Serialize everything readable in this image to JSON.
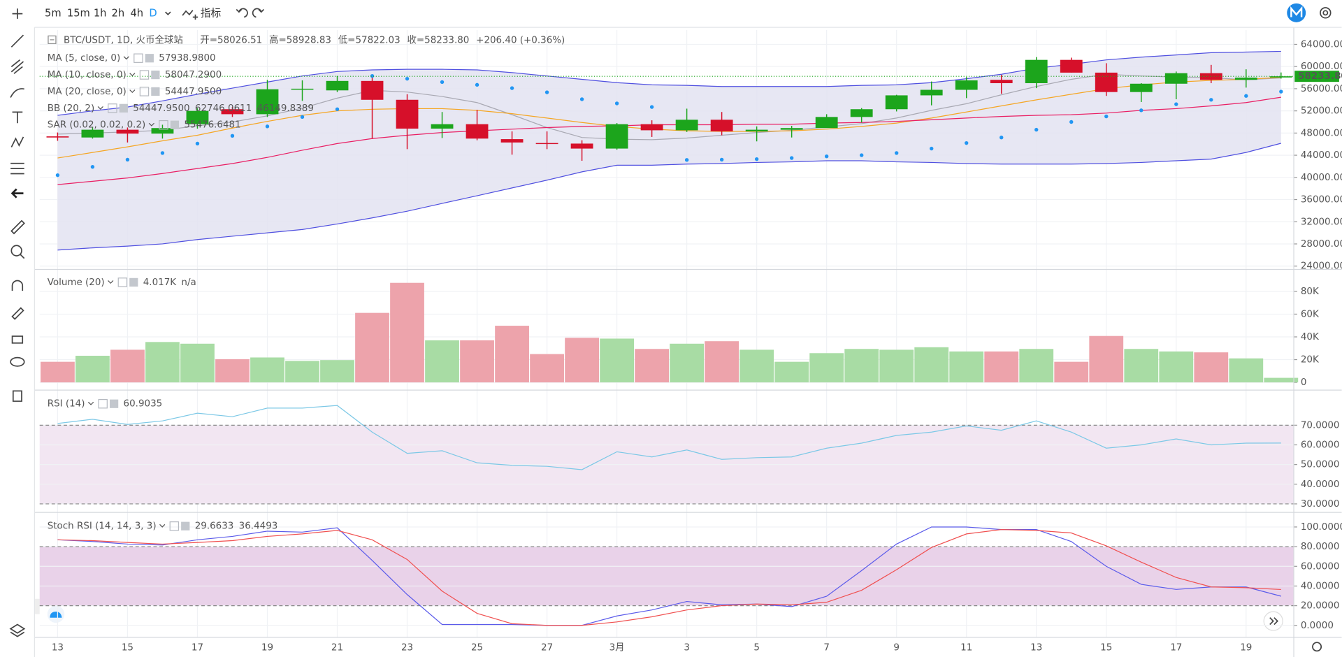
{
  "toolbar": {
    "intervals": [
      "5m",
      "15m",
      "1h",
      "2h",
      "4h",
      "D"
    ],
    "indicators_label": "指标"
  },
  "chart_data": [
    {
      "type": "candlestick",
      "title": "BTC/USDT, 1D, 火币全球站",
      "ohlc_labels": [
        "开=58026.51",
        "高=58928.83",
        "低=57822.03",
        "收=58233.80"
      ],
      "change_label": "+206.40 (+0.36%)",
      "price_label": "58233.80",
      "categories": [
        "13",
        null,
        "15",
        null,
        "17",
        null,
        "19",
        null,
        "21",
        null,
        "23",
        null,
        "25",
        null,
        "27",
        null,
        "3月",
        null,
        "3",
        null,
        "5",
        null,
        "7",
        null,
        "9",
        null,
        "11",
        null,
        "13",
        null,
        "15",
        null,
        "17",
        null,
        "19",
        null
      ],
      "open": [
        47400,
        47200,
        48600,
        47900,
        49600,
        52300,
        51400,
        55900,
        55700,
        57400,
        54000,
        48800,
        49600,
        46900,
        46200,
        46100,
        45200,
        49600,
        48500,
        50400,
        48300,
        48600,
        48900,
        50900,
        52300,
        54800,
        55800,
        57600,
        57000,
        61200,
        58900,
        55400,
        56900,
        58800,
        57600,
        58026.51
      ],
      "high": [
        48100,
        49000,
        49000,
        49500,
        52500,
        52700,
        57600,
        57500,
        58300,
        58400,
        55000,
        51800,
        52200,
        48300,
        48300,
        46700,
        49800,
        50300,
        52400,
        51800,
        49200,
        49300,
        51400,
        52500,
        54900,
        57300,
        58100,
        58500,
        61700,
        61600,
        60600,
        57000,
        59100,
        60300,
        59500,
        58928.83
      ],
      "low": [
        46600,
        47000,
        46300,
        47000,
        48800,
        50900,
        50900,
        53800,
        55400,
        47000,
        45100,
        47100,
        46700,
        44100,
        45100,
        43000,
        45000,
        47300,
        48200,
        47600,
        46500,
        47200,
        49300,
        49900,
        51900,
        53000,
        54300,
        55100,
        56100,
        58900,
        54700,
        53600,
        54100,
        57000,
        56200,
        57822.03
      ],
      "close": [
        47200,
        48600,
        47900,
        48900,
        52000,
        51400,
        55900,
        56000,
        57400,
        54000,
        48800,
        49600,
        47000,
        46300,
        46100,
        45200,
        49600,
        48500,
        50400,
        48300,
        48600,
        48900,
        50900,
        52300,
        54800,
        55800,
        57500,
        57000,
        61200,
        58900,
        55400,
        56900,
        58800,
        57600,
        58000,
        58233.8
      ],
      "up_color": "#1ca51c",
      "down_color": "#d6102a",
      "overlays": [
        {
          "name": "MA (5, close, 0)",
          "color": "#a9a9b3",
          "legend_values": [
            "57938.9800"
          ],
          "values": [
            47800,
            48000,
            48200,
            48500,
            49300,
            50000,
            51100,
            52500,
            54300,
            55700,
            55400,
            54600,
            53500,
            51300,
            49000,
            47200,
            46900,
            46800,
            47100,
            47600,
            48100,
            48500,
            49100,
            49700,
            50700,
            52100,
            53300,
            54900,
            56400,
            57700,
            58600,
            58300,
            58100,
            58000,
            57600,
            57938.98
          ]
        },
        {
          "name": "MA (10, close, 0)",
          "color": "#f5a623",
          "legend_values": [
            "58047.2900"
          ],
          "values": [
            43500,
            44500,
            45500,
            46600,
            47600,
            48900,
            50100,
            51200,
            52000,
            52300,
            52400,
            52400,
            52100,
            51500,
            50700,
            49900,
            49200,
            48700,
            48400,
            48300,
            48300,
            48400,
            48700,
            49200,
            49800,
            50700,
            51800,
            52900,
            54000,
            55000,
            56000,
            56700,
            57200,
            57500,
            57700,
            58047.29
          ]
        },
        {
          "name": "MA (20, close, 0)",
          "color": "#e91e63",
          "legend_values": [
            "54447.9500"
          ],
          "values": [
            38700,
            39300,
            39900,
            40700,
            41600,
            42500,
            43600,
            44900,
            46100,
            47000,
            47600,
            48100,
            48400,
            48700,
            49000,
            49200,
            49300,
            49500,
            49500,
            49500,
            49600,
            49600,
            49800,
            49900,
            50100,
            50400,
            50700,
            51000,
            51200,
            51300,
            51600,
            52100,
            52400,
            52900,
            53500,
            54447.95
          ]
        },
        {
          "name": "BB (20, 2)",
          "color": "#5050e0",
          "fill": "#e3e3f1",
          "legend_values": [
            "54447.9500",
            "62746.0611",
            "46149.8389"
          ],
          "legend_colors": [
            "#e0203a",
            "#2b2bd9",
            "#2b2bd9"
          ],
          "upper": [
            51200,
            52000,
            52700,
            53800,
            55000,
            56100,
            57200,
            58300,
            59100,
            59400,
            59500,
            59500,
            59400,
            58900,
            58300,
            57700,
            57100,
            56700,
            56600,
            56400,
            56400,
            56400,
            56400,
            56600,
            56700,
            57100,
            57800,
            58600,
            59700,
            60400,
            61200,
            61700,
            62100,
            62500,
            62600,
            62746.0611
          ],
          "lower": [
            26900,
            27300,
            27600,
            28000,
            28800,
            29400,
            30000,
            30600,
            31600,
            32700,
            33900,
            35300,
            36700,
            38100,
            39500,
            41000,
            42200,
            42200,
            42400,
            42500,
            42700,
            42800,
            43000,
            43000,
            42800,
            42700,
            42500,
            42400,
            42400,
            42400,
            42500,
            42700,
            43000,
            43300,
            44500,
            46149.8389
          ]
        },
        {
          "name": "SAR (0.02, 0.02, 0.2)",
          "color": "#2196f3",
          "style": "dots",
          "legend_values": [
            "55476.6481"
          ],
          "values": [
            40400,
            41900,
            43200,
            44400,
            46100,
            47500,
            49200,
            50900,
            52300,
            58300,
            57800,
            57200,
            56700,
            56100,
            55350,
            54100,
            53350,
            52700,
            43150,
            43200,
            43300,
            43500,
            43800,
            44000,
            44400,
            45200,
            46200,
            47200,
            48600,
            50000,
            51000,
            52100,
            53200,
            54000,
            54700,
            55476.6481
          ]
        }
      ],
      "ylim": [
        23700,
        66600
      ],
      "yticks": [
        {
          "value": 24000,
          "label": "24000.00"
        },
        {
          "value": 28000,
          "label": "28000.00"
        },
        {
          "value": 32000,
          "label": "32000.00"
        },
        {
          "value": 36000,
          "label": "36000.00"
        },
        {
          "value": 40000,
          "label": "40000.00"
        },
        {
          "value": 44000,
          "label": "44000.00"
        },
        {
          "value": 48000,
          "label": "48000.00"
        },
        {
          "value": 52000,
          "label": "52000.00"
        },
        {
          "value": 56000,
          "label": "56000.00"
        },
        {
          "value": 60000,
          "label": "60000.00"
        },
        {
          "value": 64000,
          "label": "64000.00"
        }
      ],
      "grid": true
    },
    {
      "type": "bar",
      "title": "Volume (20)",
      "legend_values": [
        "4.017K",
        "n/a"
      ],
      "legend_colors": [
        "#22a33a",
        "#555555"
      ],
      "values": [
        18100,
        23400,
        28700,
        35500,
        34000,
        20400,
        21900,
        18900,
        19600,
        61100,
        87500,
        37000,
        37000,
        49800,
        24900,
        39200,
        38500,
        29400,
        34000,
        36200,
        28700,
        18100,
        25700,
        29400,
        28700,
        30900,
        27200,
        27200,
        29400,
        18100,
        40800,
        29400,
        27200,
        26400,
        21100,
        4017
      ],
      "up_color": "#a8dca4",
      "down_color": "#eda3ab",
      "ylim": [
        0,
        97000
      ],
      "yticks": [
        0,
        {
          "value": 20000,
          "label": "20K"
        },
        {
          "value": 40000,
          "label": "40K"
        },
        {
          "value": 60000,
          "label": "60K"
        },
        {
          "value": 80000,
          "label": "80K"
        }
      ],
      "grid": true
    },
    {
      "type": "line",
      "title": "RSI (14)",
      "legend_values": [
        "60.9035"
      ],
      "legend_colors": [
        "#2bb7d6"
      ],
      "series": [
        {
          "color": "#7cc8e6",
          "values": [
            70.9,
            73,
            70.4,
            72.2,
            76.1,
            74.3,
            78.7,
            78.7,
            80,
            66.5,
            55.7,
            57,
            50.9,
            49.6,
            49.1,
            47.4,
            56.5,
            53.9,
            57.4,
            52.6,
            53.5,
            53.9,
            58.3,
            60.9,
            64.8,
            66.5,
            69.6,
            67.4,
            72.2,
            66.5,
            58.3,
            60,
            63,
            60,
            60.9,
            60.9035
          ]
        }
      ],
      "bands": [
        30,
        70
      ],
      "band_color": "#f2e6f2",
      "ylim": [
        27.4,
        86.1
      ],
      "yticks": [
        {
          "value": 30,
          "label": "30.0000"
        },
        {
          "value": 40,
          "label": "40.0000"
        },
        {
          "value": 50,
          "label": "50.0000"
        },
        {
          "value": 60,
          "label": "60.0000"
        },
        {
          "value": 70,
          "label": "70.0000"
        }
      ],
      "grid": true
    },
    {
      "type": "line",
      "title": "Stoch RSI (14, 14, 3, 3)",
      "legend_values": [
        "29.6633",
        "36.4493"
      ],
      "legend_colors": [
        "#2b2bd9",
        "#e0203a"
      ],
      "series": [
        {
          "color": "#5b5bea",
          "values": [
            87,
            85.2,
            82.6,
            81.7,
            87,
            90.4,
            95.7,
            94.8,
            99.1,
            66,
            31.3,
            0.9,
            0.9,
            0.9,
            0,
            0,
            9.6,
            15.7,
            24.3,
            20.9,
            21.7,
            19.1,
            29.6,
            55.7,
            82.6,
            100,
            100,
            97.4,
            97.4,
            85.2,
            60,
            41.7,
            36.5,
            39.1,
            39.1,
            29.6633
          ]
        },
        {
          "color": "#f05050",
          "values": [
            87,
            86.1,
            84.3,
            82.6,
            84.3,
            86.1,
            90.4,
            93,
            96.5,
            87,
            67,
            34.8,
            12.2,
            1.7,
            0,
            0,
            3.5,
            8.7,
            15.7,
            20,
            21.7,
            20.9,
            23.5,
            35.7,
            56.5,
            79.1,
            93,
            97.4,
            96.5,
            93.9,
            80.9,
            64.3,
            48.7,
            39.1,
            38.3,
            36.4493
          ]
        }
      ],
      "bands": [
        20,
        80
      ],
      "band_color": "#e9d2e9",
      "ylim": [
        -10.4,
        111.3
      ],
      "yticks": [
        {
          "value": 0,
          "label": "0.0000"
        },
        {
          "value": 20,
          "label": "20.0000"
        },
        {
          "value": 40,
          "label": "40.0000"
        },
        {
          "value": 60,
          "label": "60.0000"
        },
        {
          "value": 80,
          "label": "80.0000"
        },
        {
          "value": 100,
          "label": "100.0000"
        }
      ],
      "grid": true
    }
  ]
}
